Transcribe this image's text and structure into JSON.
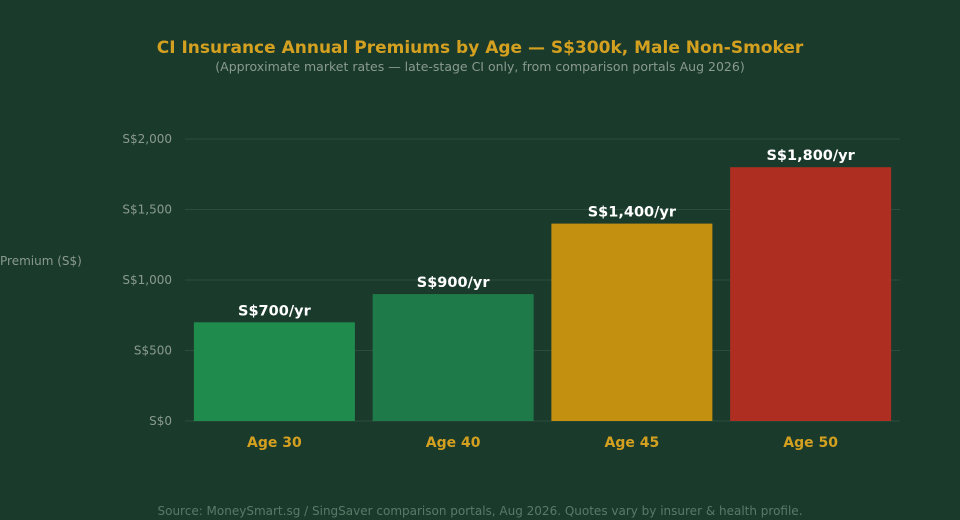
{
  "chart_data": {
    "type": "bar",
    "title": "CI Insurance Annual Premiums by Age — S$300k, Male Non-Smoker",
    "subtitle": "(Approximate market rates — late-stage CI only, from comparison portals Aug 2026)",
    "ylabel": "Premium (S$)",
    "xlabel": "",
    "categories": [
      "Age 30",
      "Age 40",
      "Age 45",
      "Age 50"
    ],
    "values": [
      700,
      900,
      1400,
      1800
    ],
    "data_labels": [
      "S$700/yr",
      "S$900/yr",
      "S$1,400/yr",
      "S$1,800/yr"
    ],
    "bar_colors": [
      "#1f8c4e",
      "#1e7a48",
      "#c49010",
      "#ae2f22"
    ],
    "ylim": [
      0,
      2000
    ],
    "yticks": [
      0,
      500,
      1000,
      1500,
      2000
    ],
    "ytick_labels": [
      "S$0",
      "S$500",
      "S$1,000",
      "S$1,500",
      "S$2,000"
    ],
    "grid": true,
    "legend": "none",
    "source": "Source: MoneySmart.sg / SingSaver comparison portals, Aug 2026. Quotes vary by insurer & health profile."
  },
  "colors": {
    "background": "#1a3a2c",
    "title": "#d4a020",
    "subtitle": "#8a9a90",
    "tick_label": "#8a9a90",
    "category_label": "#d4a020",
    "data_label": "#ffffff",
    "grid": "#2c4d3d",
    "source": "#5a7a68"
  }
}
